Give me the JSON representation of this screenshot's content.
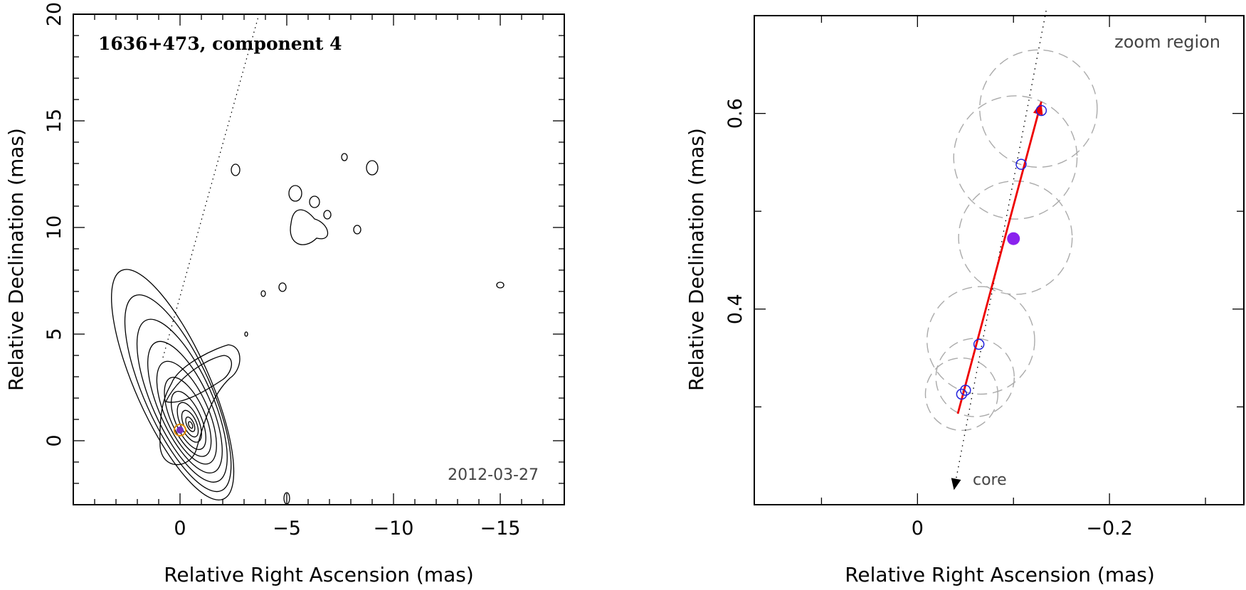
{
  "chart_data": [
    {
      "type": "contour",
      "title": "1636+473, component 4",
      "date_label": "2012-03-27",
      "xlabel": "Relative Right Ascension (mas)",
      "ylabel": "Relative Declination (mas)",
      "xlim": [
        5,
        -18
      ],
      "ylim": [
        -3,
        20
      ],
      "x_ticks": [
        0,
        -5,
        -10,
        -15
      ],
      "x_tick_labels": [
        "0",
        "−5",
        "−10",
        "−15"
      ],
      "y_ticks": [
        0,
        5,
        10,
        15,
        20
      ],
      "y_tick_labels": [
        "0",
        "5",
        "10",
        "15",
        "20"
      ],
      "jet_axis_line": [
        [
          0.8,
          3.9
        ],
        [
          -3.7,
          20
        ]
      ],
      "component_position": [
        0.0,
        0.5
      ],
      "marker_colors": {
        "component": "#7b2fbe",
        "outline": "#e08a00",
        "contour": "#000000"
      }
    },
    {
      "type": "scatter",
      "title": "zoom region",
      "core_label": "core",
      "xlabel": "Relative Right Ascension (mas)",
      "ylabel": "Relative Declination (mas)",
      "xlim": [
        0.17,
        -0.34
      ],
      "ylim": [
        0.2,
        0.7
      ],
      "x_ticks": [
        0,
        -0.2
      ],
      "x_tick_labels": [
        "0",
        "−0.2"
      ],
      "y_ticks": [
        0.4,
        0.6
      ],
      "y_tick_labels": [
        "0.4",
        "0.6"
      ],
      "epochs": [
        {
          "x": -0.046,
          "y": 0.313
        },
        {
          "x": -0.05,
          "y": 0.317
        },
        {
          "x": -0.064,
          "y": 0.364
        },
        {
          "x": -0.108,
          "y": 0.548
        },
        {
          "x": -0.129,
          "y": 0.603
        }
      ],
      "position_error_circles": [
        {
          "x": -0.046,
          "y": 0.313,
          "r": 0.037
        },
        {
          "x": -0.06,
          "y": 0.33,
          "r": 0.04
        },
        {
          "x": -0.066,
          "y": 0.368,
          "r": 0.055
        },
        {
          "x": -0.102,
          "y": 0.473,
          "r": 0.058
        },
        {
          "x": -0.102,
          "y": 0.555,
          "r": 0.063
        },
        {
          "x": -0.126,
          "y": 0.605,
          "r": 0.06
        }
      ],
      "mean_position": {
        "x": -0.1,
        "y": 0.472
      },
      "velocity_vector": {
        "from": [
          -0.042,
          0.293
        ],
        "to": [
          -0.129,
          0.612
        ]
      },
      "core_direction_line": {
        "from": [
          -0.134,
          0.705
        ],
        "to": [
          -0.038,
          0.215
        ]
      },
      "colors": {
        "epoch": "#2222dd",
        "mean": "#8a22ee",
        "vector": "#ee0000",
        "circle": "#aaaaaa"
      }
    }
  ]
}
